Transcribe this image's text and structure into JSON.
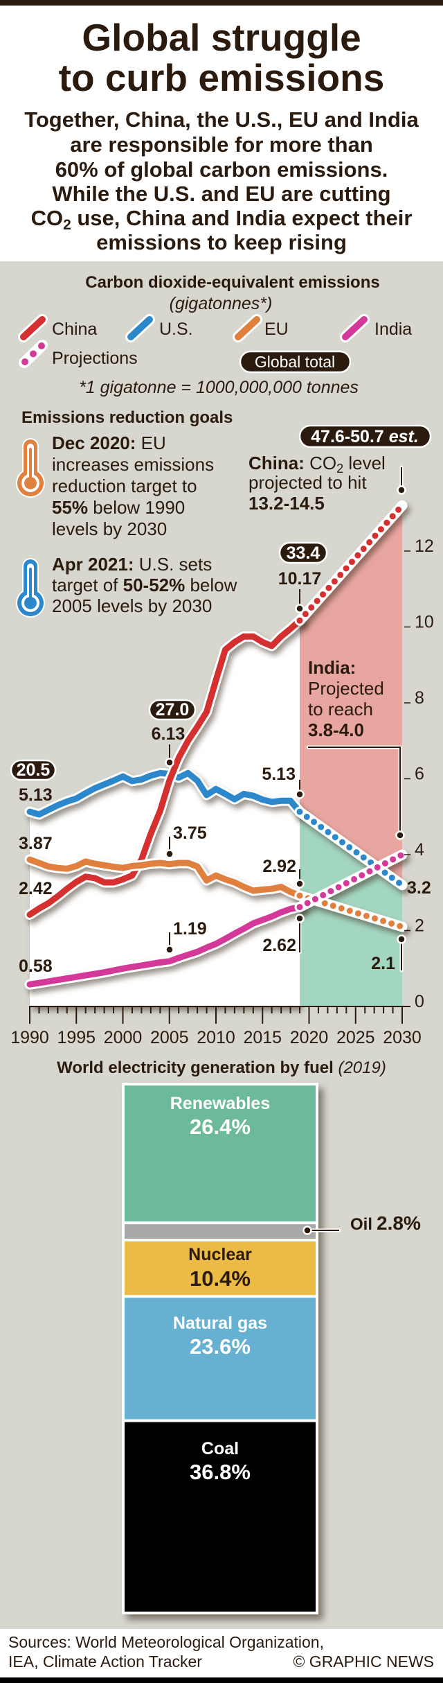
{
  "header": {
    "title_line1": "Global struggle",
    "title_line2": "to curb emissions",
    "subtitle": {
      "line1": "Together, China, the U.S., EU and India",
      "line2": "are responsible for more than",
      "line3": "60% of global carbon emissions.",
      "line4": "While the U.S. and EU are cutting",
      "line5_co": "CO",
      "line5_sub": "2",
      "line5_rest": " use, China and India expect their",
      "line6": "emissions to keep rising"
    }
  },
  "goals": {
    "title": "Emissions reduction goals",
    "eu": {
      "icon": "thermometer-icon",
      "color": "#e0803e",
      "date": "Dec 2020:",
      "line1_rest": " EU",
      "line2": "increases emissions",
      "line3": "reduction target to",
      "line4_bold": "55%",
      "line4_rest": " below 1990",
      "line5": "levels by 2030"
    },
    "us": {
      "icon": "thermometer-icon",
      "color": "#2d87cb",
      "date": "Apr 2021:",
      "line1_rest": " U.S. sets",
      "line2_pre": "target of ",
      "line2_bold": "50-52%",
      "line2_rest": " below",
      "line3": "2005 levels by 2030"
    }
  },
  "chart_data": [
    {
      "type": "line",
      "title": "Carbon dioxide-equivalent emissions",
      "subtitle": "(gigatonnes*)",
      "footnote": "*1 gigatonne = 1000,000,000 tonnes",
      "xlabel": "",
      "ylabel": "gigatonnes",
      "xlim": [
        1990,
        2030
      ],
      "ylim": [
        0,
        13.5
      ],
      "grid": false,
      "x_ticks": [
        1990,
        1995,
        2000,
        2005,
        2010,
        2015,
        2020,
        2025,
        2030
      ],
      "y_ticks": [
        0,
        2,
        4,
        6,
        8,
        10,
        12
      ],
      "y_axis_side": "right",
      "legend": {
        "position": "top",
        "entries": [
          {
            "label": "China",
            "color": "#d3302f",
            "style": "solid"
          },
          {
            "label": "U.S.",
            "color": "#2d87cb",
            "style": "solid"
          },
          {
            "label": "EU",
            "color": "#e0803e",
            "style": "solid"
          },
          {
            "label": "India",
            "color": "#d4399a",
            "style": "solid"
          },
          {
            "label": "Projections",
            "color": "#d4399a",
            "style": "dotted"
          },
          {
            "label": "Global total",
            "style": "badge"
          }
        ]
      },
      "x": [
        1990,
        1991,
        1992,
        1993,
        1994,
        1995,
        1996,
        1997,
        1998,
        1999,
        2000,
        2001,
        2002,
        2003,
        2004,
        2005,
        2006,
        2007,
        2008,
        2009,
        2010,
        2011,
        2012,
        2013,
        2014,
        2015,
        2016,
        2017,
        2018,
        2019
      ],
      "series": [
        {
          "name": "China",
          "color": "#d3302f",
          "values": [
            2.42,
            2.58,
            2.72,
            2.9,
            3.1,
            3.28,
            3.42,
            3.38,
            3.27,
            3.27,
            3.35,
            3.45,
            3.87,
            4.55,
            5.15,
            5.95,
            6.55,
            7.0,
            7.37,
            7.76,
            8.6,
            9.4,
            9.6,
            9.75,
            9.75,
            9.6,
            9.5,
            9.75,
            9.95,
            10.17
          ],
          "projection": {
            "x": [
              2019,
              2030
            ],
            "values": [
              10.17,
              13.2
            ]
          }
        },
        {
          "name": "U.S.",
          "color": "#2d87cb",
          "values": [
            5.13,
            5.06,
            5.18,
            5.3,
            5.4,
            5.48,
            5.62,
            5.75,
            5.85,
            5.95,
            6.06,
            5.94,
            5.98,
            6.08,
            6.15,
            6.13,
            6.03,
            6.15,
            5.95,
            5.57,
            5.73,
            5.6,
            5.46,
            5.6,
            5.55,
            5.45,
            5.39,
            5.42,
            5.42,
            5.13
          ],
          "projection": {
            "x": [
              2019,
              2030
            ],
            "values": [
              5.13,
              3.2
            ]
          }
        },
        {
          "name": "EU",
          "color": "#e0803e",
          "values": [
            3.87,
            3.78,
            3.69,
            3.65,
            3.63,
            3.7,
            3.82,
            3.76,
            3.72,
            3.68,
            3.65,
            3.7,
            3.72,
            3.76,
            3.78,
            3.75,
            3.78,
            3.78,
            3.69,
            3.32,
            3.45,
            3.35,
            3.27,
            3.15,
            3.05,
            3.08,
            3.1,
            3.15,
            3.02,
            2.92
          ],
          "projection": {
            "x": [
              2019,
              2030
            ],
            "values": [
              2.92,
              2.1
            ]
          }
        },
        {
          "name": "India",
          "color": "#d4399a",
          "values": [
            0.58,
            0.62,
            0.66,
            0.7,
            0.74,
            0.78,
            0.82,
            0.86,
            0.9,
            0.95,
            1.0,
            1.04,
            1.08,
            1.12,
            1.16,
            1.19,
            1.28,
            1.36,
            1.44,
            1.55,
            1.65,
            1.78,
            1.92,
            2.05,
            2.19,
            2.28,
            2.37,
            2.48,
            2.57,
            2.62
          ],
          "projection": {
            "x": [
              2019,
              2030
            ],
            "values": [
              2.62,
              4.0
            ]
          }
        }
      ],
      "projection_band": {
        "from": 2019,
        "to": 2030,
        "upper_series": "China",
        "divider_series": "U.S.",
        "upper_color": "#e8a6a1",
        "lower_color": "#a3d6c0"
      },
      "global_totals": [
        {
          "year": 1990,
          "value": "20.5"
        },
        {
          "year": 2005,
          "value": "27.0"
        },
        {
          "year": 2019,
          "value": "33.4"
        },
        {
          "year": 2030,
          "value": "47.6-50.7",
          "note": " est."
        }
      ],
      "value_labels": [
        {
          "series": "U.S.",
          "year": 1990,
          "label": "5.13"
        },
        {
          "series": "EU",
          "year": 1990,
          "label": "3.87"
        },
        {
          "series": "China",
          "year": 1990,
          "label": "2.42"
        },
        {
          "series": "India",
          "year": 1990,
          "label": "0.58"
        },
        {
          "series": "U.S.",
          "year": 2005,
          "label": "6.13"
        },
        {
          "series": "EU",
          "year": 2005,
          "label": "3.75"
        },
        {
          "series": "India",
          "year": 2005,
          "label": "1.19"
        },
        {
          "series": "China",
          "year": 2019,
          "label": "10.17"
        },
        {
          "series": "U.S.",
          "year": 2019,
          "label": "5.13"
        },
        {
          "series": "EU",
          "year": 2019,
          "label": "2.92"
        },
        {
          "series": "India",
          "year": 2019,
          "label": "2.62"
        },
        {
          "series": "U.S.",
          "year": 2030,
          "label": "3.2"
        },
        {
          "series": "EU",
          "year": 2030,
          "label": "2.1"
        }
      ],
      "callouts": {
        "china": {
          "name": "China:",
          "co": " CO",
          "sub": "2",
          "rest": " level",
          "line2": "projected to hit",
          "range": "13.2-14.5"
        },
        "india": {
          "name": "India:",
          "line2": "Projected",
          "line3": "to reach",
          "range": "3.8-4.0"
        }
      }
    },
    {
      "type": "bar",
      "stacked": true,
      "title": "World electricity generation by fuel",
      "title_note": " (2019)",
      "unit": "%",
      "categories": [
        "Renewables",
        "Oil",
        "Nuclear",
        "Natural gas",
        "Coal"
      ],
      "values": [
        26.4,
        2.8,
        10.4,
        23.6,
        36.8
      ],
      "value_labels": [
        "26.4%",
        "2.8%",
        "10.4%",
        "23.6%",
        "36.8%"
      ],
      "colors": [
        "#6cba9a",
        "#a8a8a8",
        "#ecbb45",
        "#66b0d1",
        "#000000"
      ]
    }
  ],
  "footer": {
    "sources_line1": "Sources: World Meteorological Organization,",
    "sources_line2": "IEA, Climate Action Tracker",
    "credit": "© GRAPHIC NEWS"
  }
}
